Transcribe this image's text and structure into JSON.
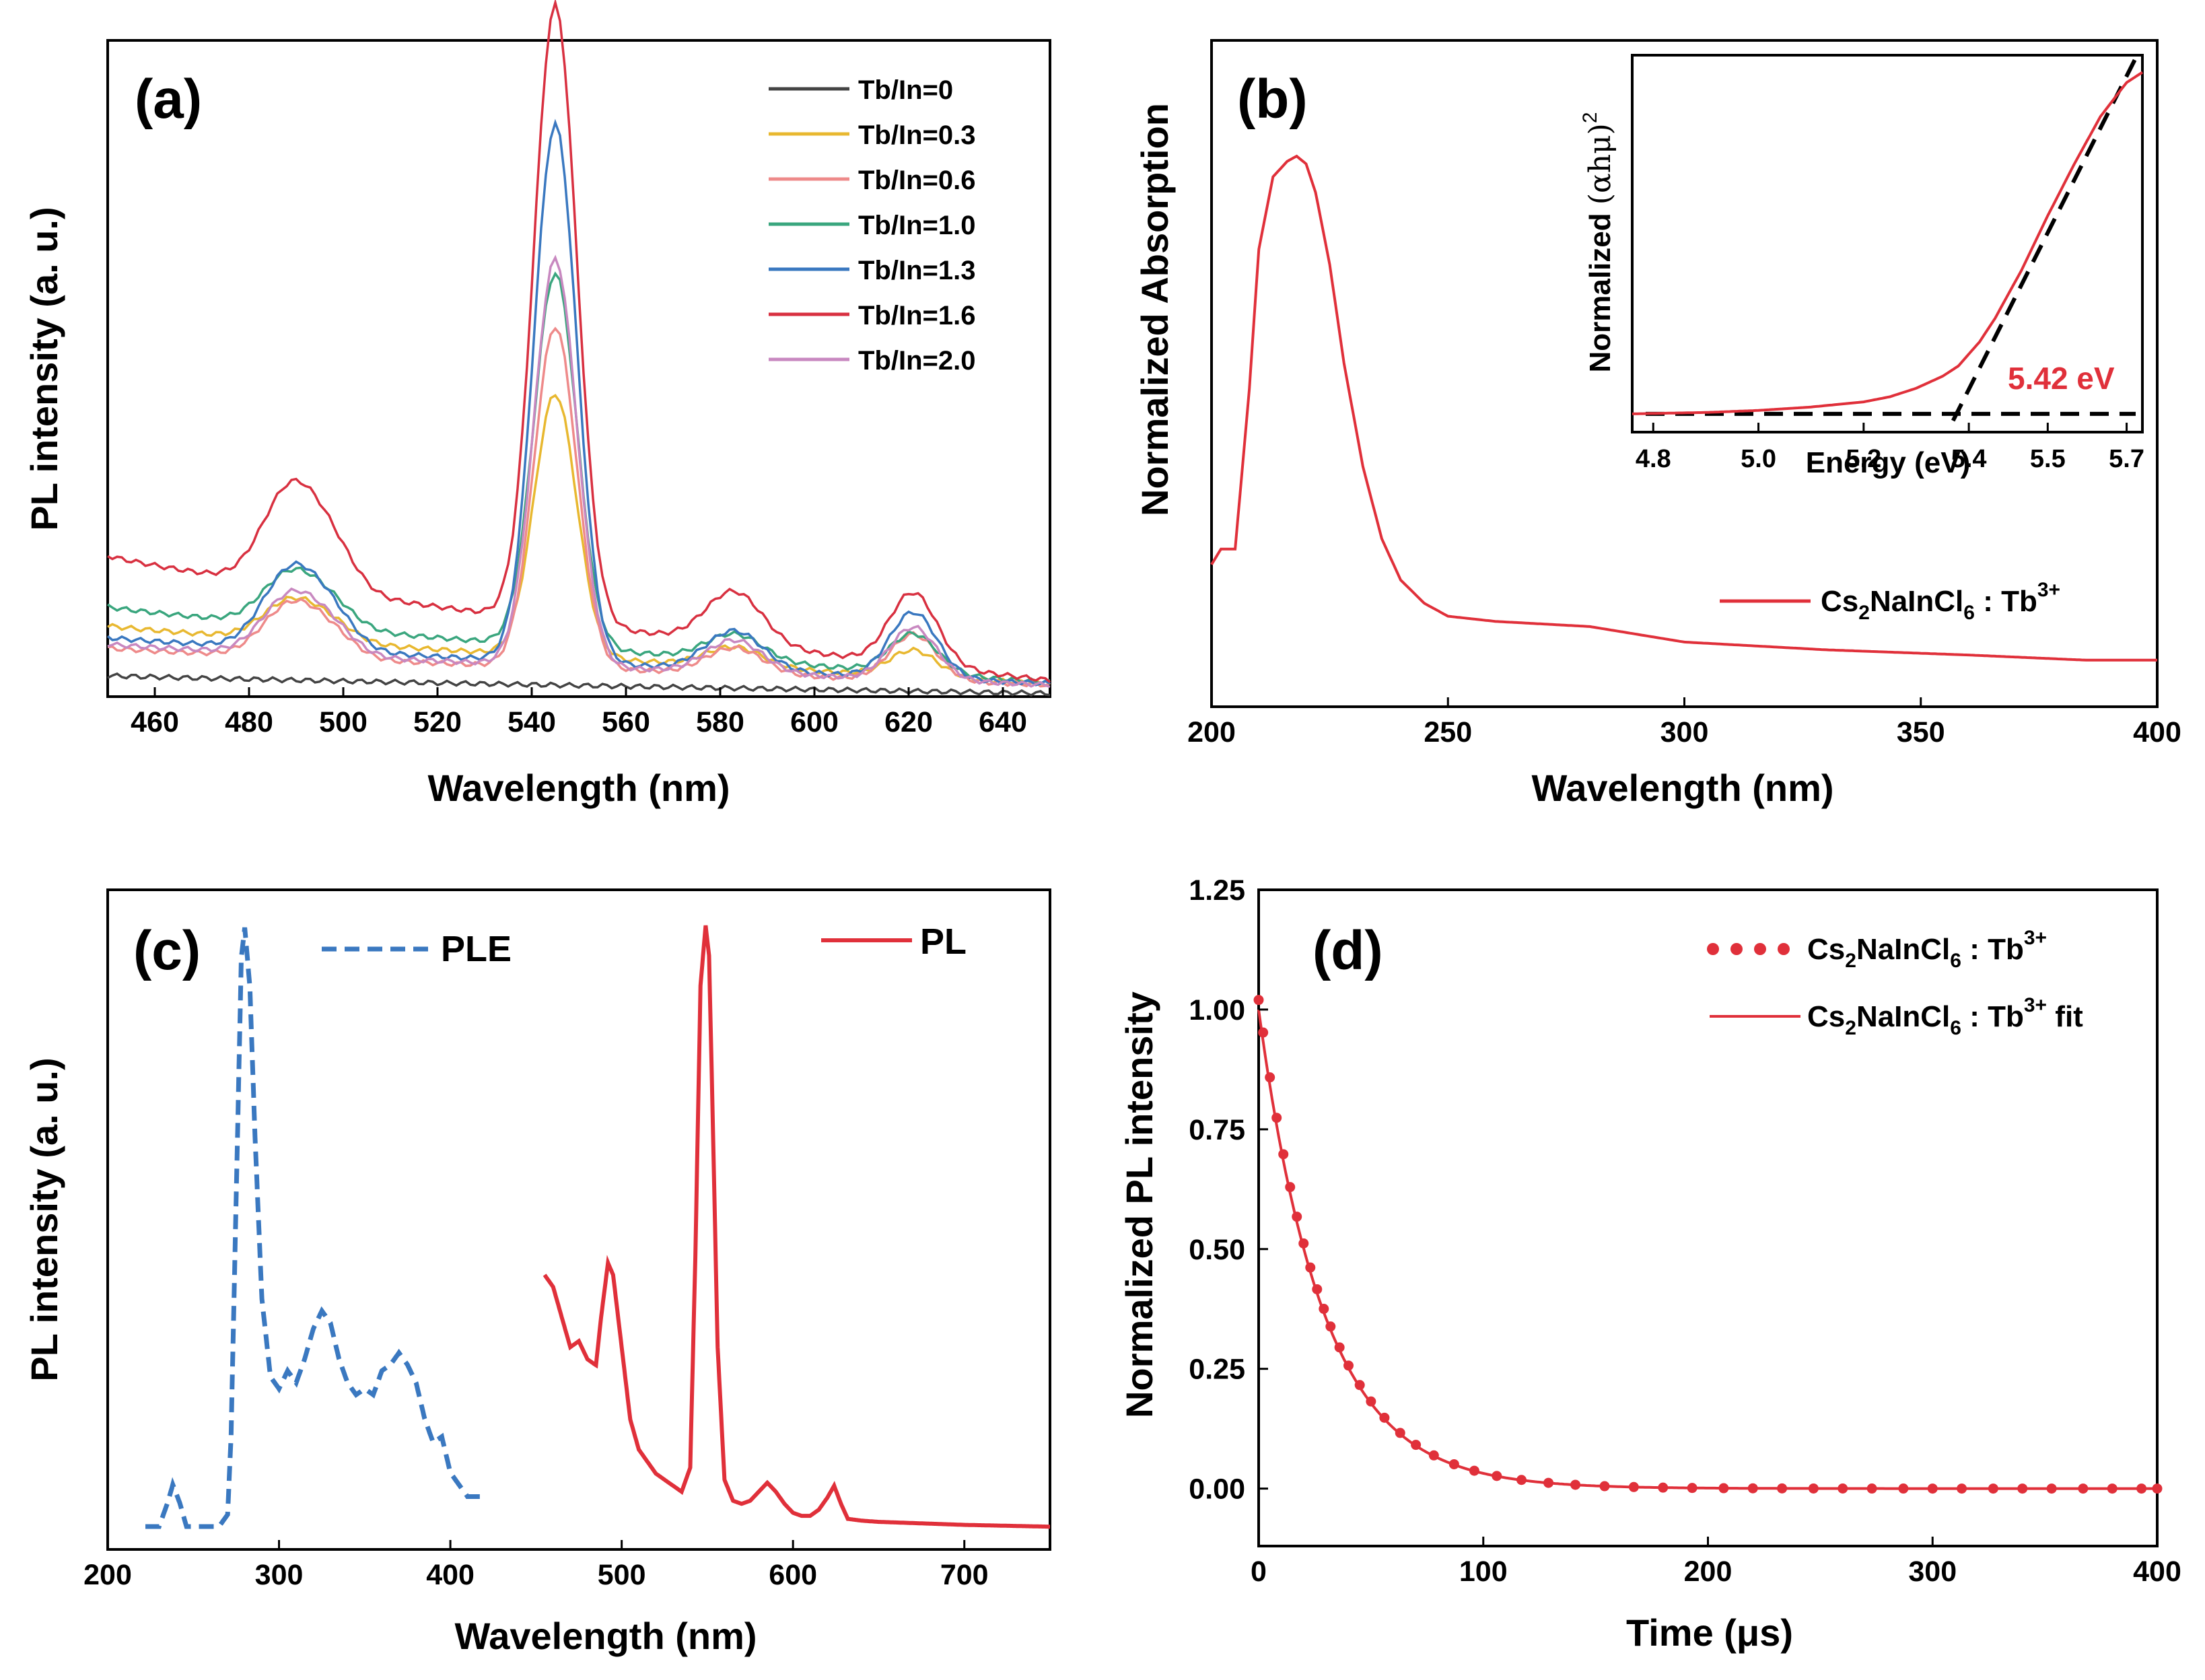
{
  "colors": {
    "red": "#e0303a",
    "blue": "#3a78c0",
    "black": "#000000",
    "series": [
      "#444444",
      "#e8b830",
      "#ee8a8a",
      "#3aa67e",
      "#3a78c0",
      "#d83040",
      "#c888c0"
    ]
  },
  "chart_data": [
    {
      "id": "a",
      "type": "line",
      "panel_label": "(a)",
      "xlabel": "Wavelength (nm)",
      "ylabel": "PL intensity (a. u.)",
      "xlim": [
        450,
        650
      ],
      "ylim": [
        0,
        1.0
      ],
      "x_ticks": [
        "460",
        "480",
        "500",
        "520",
        "540",
        "560",
        "580",
        "600",
        "620",
        "640"
      ],
      "legend_position": "top-right",
      "series": [
        {
          "name": "Tb/In=0",
          "base": 0.032,
          "tail": 0.005,
          "peaks": [
            0,
            0,
            0,
            0
          ]
        },
        {
          "name": "Tb/In=0.3",
          "base": 0.108,
          "tail": 0.02,
          "peaks": [
            0.06,
            0.4,
            0.03,
            0.04
          ]
        },
        {
          "name": "Tb/In=0.6",
          "base": 0.074,
          "tail": 0.018,
          "peaks": [
            0.08,
            0.52,
            0.04,
            0.07
          ]
        },
        {
          "name": "Tb/In=1.0",
          "base": 0.137,
          "tail": 0.022,
          "peaks": [
            0.08,
            0.57,
            0.04,
            0.06
          ]
        },
        {
          "name": "Tb/In=1.3",
          "base": 0.09,
          "tail": 0.02,
          "peaks": [
            0.12,
            0.82,
            0.06,
            0.1
          ]
        },
        {
          "name": "Tb/In=1.6",
          "base": 0.215,
          "tail": 0.025,
          "peaks": [
            0.15,
            0.94,
            0.08,
            0.11
          ]
        },
        {
          "name": "Tb/In=2.0",
          "base": 0.08,
          "tail": 0.018,
          "peaks": [
            0.09,
            0.62,
            0.05,
            0.08
          ]
        }
      ],
      "peak_centers_nm": [
        489,
        545,
        583,
        621
      ]
    },
    {
      "id": "b",
      "type": "line",
      "panel_label": "(b)",
      "xlabel": "Wavelength (nm)",
      "ylabel": "Normalized Absorption",
      "xlim": [
        200,
        400
      ],
      "x_ticks": [
        "200",
        "250",
        "300",
        "350",
        "400"
      ],
      "legend_position": "bottom-right",
      "legend_label_main": "Cs",
      "legend_label_sub": "2",
      "legend_label_rest": "NaInCl",
      "legend_label_sub2": "6",
      "legend_label_tail": " : Tb",
      "legend_label_sup": "3+",
      "x": [
        200,
        202,
        205,
        208,
        210,
        213,
        216,
        218,
        220,
        222,
        225,
        228,
        232,
        236,
        240,
        245,
        250,
        260,
        270,
        280,
        300,
        330,
        360,
        385,
        400
      ],
      "y": [
        0.21,
        0.24,
        0.24,
        0.55,
        0.82,
        0.96,
        0.99,
        1.0,
        0.985,
        0.93,
        0.79,
        0.6,
        0.4,
        0.26,
        0.18,
        0.135,
        0.11,
        0.1,
        0.095,
        0.09,
        0.06,
        0.045,
        0.035,
        0.025,
        0.025
      ],
      "inset": {
        "xlabel": "Energy (eV)",
        "ylabel_main": "Normalized ",
        "ylabel_paren": "(αhμ)",
        "ylabel_sup": "2",
        "xlim": [
          4.76,
          5.73
        ],
        "ylim": [
          -0.02,
          1.05
        ],
        "x_ticks": [
          "4.8",
          "5.0",
          "5.2",
          "5.4",
          "5.5",
          "5.7"
        ],
        "x_tick_values": [
          4.8,
          5.0,
          5.2,
          5.4,
          5.55,
          5.7
        ],
        "annotation": "5.42 eV",
        "curve_x": [
          4.76,
          4.9,
          5.0,
          5.1,
          5.2,
          5.25,
          5.3,
          5.35,
          5.38,
          5.42,
          5.45,
          5.5,
          5.55,
          5.6,
          5.65,
          5.7,
          5.73
        ],
        "curve_y": [
          0.0,
          0.004,
          0.01,
          0.02,
          0.035,
          0.05,
          0.075,
          0.11,
          0.14,
          0.21,
          0.28,
          0.42,
          0.58,
          0.73,
          0.87,
          0.97,
          1.0
        ],
        "fit_line": [
          [
            5.37,
            -0.02
          ],
          [
            5.72,
            1.05
          ]
        ],
        "baseline_y": 0.0
      }
    },
    {
      "id": "c",
      "type": "line",
      "panel_label": "(c)",
      "xlabel": "Wavelength (nm)",
      "ylabel": "PL intensity (a. u.)",
      "xlim": [
        200,
        750
      ],
      "x_ticks": [
        "200",
        "300",
        "400",
        "500",
        "600",
        "700"
      ],
      "legend_position": "top",
      "series": [
        {
          "name": "PLE",
          "style": "dashed",
          "x": [
            222,
            230,
            235,
            238,
            242,
            246,
            250,
            258,
            265,
            270,
            272,
            275,
            278,
            280,
            283,
            286,
            290,
            295,
            300,
            305,
            310,
            315,
            320,
            325,
            330,
            335,
            340,
            345,
            350,
            355,
            360,
            365,
            370,
            375,
            380,
            385,
            390,
            395,
            400,
            410,
            420
          ],
          "y": [
            0.0,
            0.0,
            0.04,
            0.07,
            0.04,
            0.0,
            0.0,
            0.0,
            0.0,
            0.02,
            0.15,
            0.55,
            0.95,
            1.0,
            0.9,
            0.65,
            0.38,
            0.25,
            0.23,
            0.26,
            0.24,
            0.28,
            0.33,
            0.36,
            0.34,
            0.28,
            0.24,
            0.22,
            0.23,
            0.22,
            0.26,
            0.27,
            0.29,
            0.27,
            0.24,
            0.18,
            0.14,
            0.15,
            0.09,
            0.05,
            0.05
          ]
        },
        {
          "name": "PL",
          "style": "solid",
          "x": [
            455,
            460,
            465,
            470,
            475,
            480,
            485,
            488,
            492,
            495,
            500,
            505,
            510,
            520,
            530,
            535,
            540,
            543,
            546,
            549,
            551,
            553,
            556,
            560,
            565,
            570,
            575,
            580,
            585,
            590,
            595,
            600,
            605,
            610,
            615,
            620,
            624,
            628,
            632,
            640,
            650,
            700,
            750
          ],
          "y": [
            0.42,
            0.4,
            0.35,
            0.3,
            0.31,
            0.28,
            0.27,
            0.35,
            0.44,
            0.42,
            0.3,
            0.18,
            0.13,
            0.09,
            0.07,
            0.06,
            0.1,
            0.45,
            0.9,
            1.0,
            0.95,
            0.7,
            0.3,
            0.08,
            0.045,
            0.04,
            0.045,
            0.06,
            0.075,
            0.06,
            0.04,
            0.025,
            0.02,
            0.02,
            0.03,
            0.05,
            0.07,
            0.04,
            0.015,
            0.012,
            0.01,
            0.005,
            0.002
          ]
        }
      ]
    },
    {
      "id": "d",
      "type": "scatter",
      "panel_label": "(d)",
      "xlabel": "Time (μs)",
      "ylabel": "Normalized PL intensity",
      "xlim": [
        0,
        400
      ],
      "ylim": [
        -0.12,
        1.25
      ],
      "x_ticks": [
        "0",
        "100",
        "200",
        "300",
        "400"
      ],
      "x_tick_values": [
        0,
        100,
        200,
        300,
        400
      ],
      "y_ticks": [
        "0.00",
        "0.25",
        "0.50",
        "0.75",
        "1.00",
        "1.25"
      ],
      "y_tick_values": [
        0,
        0.25,
        0.5,
        0.75,
        1.0,
        1.25
      ],
      "legend_position": "top-right",
      "decay_tau_us": 29,
      "legend": [
        {
          "main": "Cs",
          "sub": "2",
          "rest": "NaInCl",
          "sub2": "6",
          "tail": " :  Tb",
          "sup": "3+",
          "after": ""
        },
        {
          "main": "Cs",
          "sub": "2",
          "rest": "NaInCl",
          "sub2": "6",
          "tail": " :  Tb",
          "sup": "3+",
          "after": " fit"
        }
      ]
    }
  ]
}
